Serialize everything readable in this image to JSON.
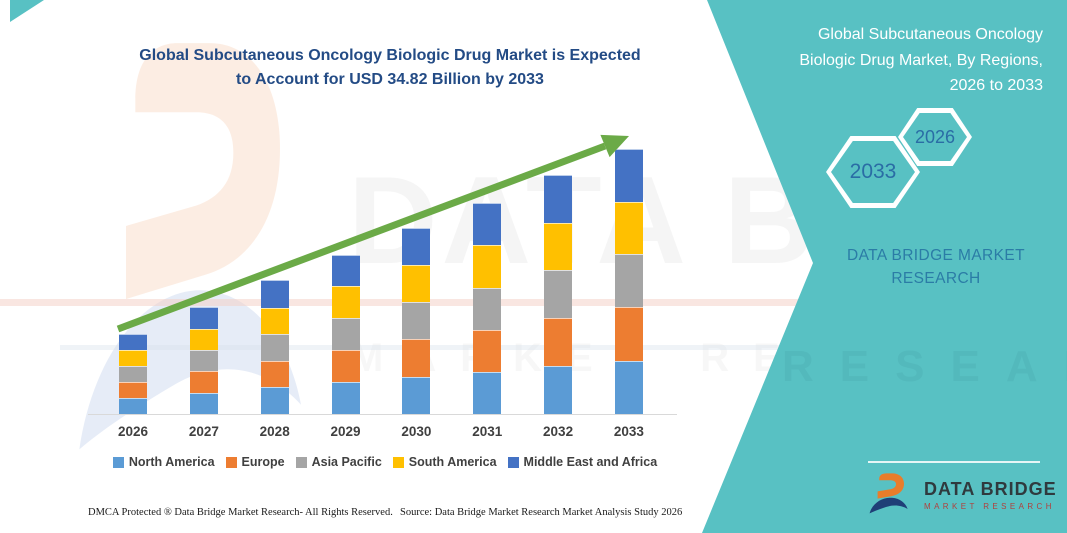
{
  "colors": {
    "teal": "#58C1C3",
    "title_blue": "#234B85",
    "arrow_green": "#6BAA47",
    "hex_year_text": "#2A6DA5",
    "panel_brand_text": "#2B7CA6",
    "axis_text": "#404040",
    "logo_orange": "#E87D2B",
    "logo_navy": "#1F3F77",
    "logo_subtitle_red": "#B0413E"
  },
  "chart": {
    "title_lines": [
      "Global Subcutaneous Oncology Biologic Drug Market is Expected",
      "to Account for USD 34.82 Billion by 2033"
    ]
  },
  "chart_data": {
    "type": "bar",
    "stacked": true,
    "title": "Global Subcutaneous Oncology Biologic Drug Market is Expected to Account for USD 34.82 Billion by 2033",
    "unit": "USD Billion",
    "categories": [
      "2026",
      "2027",
      "2028",
      "2029",
      "2030",
      "2031",
      "2032",
      "2033"
    ],
    "series": [
      {
        "name": "North America",
        "color": "#5B9BD5",
        "values": [
          2.1,
          2.8,
          3.5,
          4.2,
          4.9,
          5.5,
          6.3,
          7.0
        ]
      },
      {
        "name": "Europe",
        "color": "#ED7D31",
        "values": [
          2.1,
          2.8,
          3.5,
          4.2,
          4.9,
          5.5,
          6.3,
          7.0
        ]
      },
      {
        "name": "Asia Pacific",
        "color": "#A5A5A5",
        "values": [
          2.1,
          2.8,
          3.5,
          4.2,
          4.9,
          5.6,
          6.3,
          7.0
        ]
      },
      {
        "name": "South America",
        "color": "#FFC000",
        "values": [
          2.1,
          2.8,
          3.5,
          4.2,
          4.9,
          5.6,
          6.2,
          6.9
        ]
      },
      {
        "name": "Middle East and Africa",
        "color": "#4472C4",
        "values": [
          2.1,
          2.9,
          3.6,
          4.1,
          4.8,
          5.5,
          6.3,
          6.92
        ]
      }
    ],
    "totals_estimated_billion_usd": [
      10.5,
      14.1,
      17.6,
      20.9,
      24.4,
      27.7,
      31.4,
      34.82
    ],
    "ylim": [
      0,
      36
    ],
    "grid": false,
    "legend_position": "bottom",
    "trend_arrow": "up"
  },
  "panel": {
    "title_lines": [
      "Global Subcutaneous Oncology",
      "Biologic Drug Market, By Regions,",
      "2026 to 2033"
    ],
    "hexagon_left": "2033",
    "hexagon_right": "2026",
    "brand_text": "DATA BRIDGE MARKET RESEARCH"
  },
  "logo": {
    "title": "DATA BRIDGE",
    "subtitle": "MARKET RESEARCH"
  },
  "footer": {
    "dmca": "DMCA Protected ® Data Bridge Market Research-  All Rights Reserved.",
    "source": "Source: Data Bridge Market Research  Market Analysis Study 2026"
  },
  "watermark": {
    "text_line1": "DATA BRIDGE",
    "text_line2": "MARKET RESEARCH"
  }
}
